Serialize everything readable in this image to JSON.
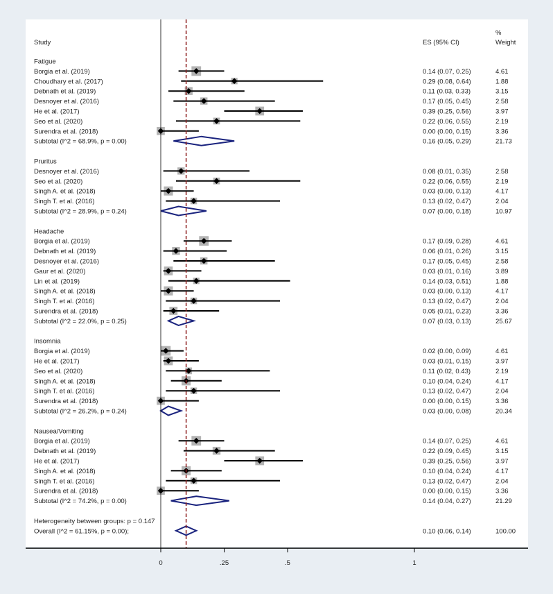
{
  "chart_data": {
    "type": "forest",
    "header": {
      "study": "Study",
      "es": "ES (95% CI)",
      "weight_top": "%",
      "weight": "Weight"
    },
    "x_axis": {
      "ticks": [
        0,
        0.25,
        0.5,
        1
      ],
      "tick_labels": [
        "0",
        ".25",
        ".5",
        "1"
      ],
      "range": [
        0,
        1
      ]
    },
    "overall_line": 0.1,
    "groups": [
      {
        "name": "Fatigue",
        "studies": [
          {
            "study": "Borgia et al. (2019)",
            "es": 0.14,
            "lo": 0.07,
            "hi": 0.25,
            "es_text": "0.14 (0.07, 0.25)",
            "weight": "4.61"
          },
          {
            "study": "Choudhary et al. (2017)",
            "es": 0.29,
            "lo": 0.08,
            "hi": 0.64,
            "es_text": "0.29 (0.08, 0.64)",
            "weight": "1.88"
          },
          {
            "study": "Debnath et al. (2019)",
            "es": 0.11,
            "lo": 0.03,
            "hi": 0.33,
            "es_text": "0.11 (0.03, 0.33)",
            "weight": "3.15"
          },
          {
            "study": "Desnoyer et al. (2016)",
            "es": 0.17,
            "lo": 0.05,
            "hi": 0.45,
            "es_text": "0.17 (0.05, 0.45)",
            "weight": "2.58"
          },
          {
            "study": "He et al. (2017)",
            "es": 0.39,
            "lo": 0.25,
            "hi": 0.56,
            "es_text": "0.39 (0.25, 0.56)",
            "weight": "3.97"
          },
          {
            "study": "Seo et al. (2020)",
            "es": 0.22,
            "lo": 0.06,
            "hi": 0.55,
            "es_text": "0.22 (0.06, 0.55)",
            "weight": "2.19"
          },
          {
            "study": "Surendra et al. (2018)",
            "es": 0.0,
            "lo": 0.0,
            "hi": 0.15,
            "es_text": "0.00 (0.00, 0.15)",
            "weight": "3.36"
          }
        ],
        "subtotal": {
          "label": "Subtotal  (I^2 = 68.9%, p = 0.00)",
          "es": 0.16,
          "lo": 0.05,
          "hi": 0.29,
          "es_text": "0.16 (0.05, 0.29)",
          "weight": "21.73"
        }
      },
      {
        "name": "Pruritus",
        "studies": [
          {
            "study": "Desnoyer et al. (2016)",
            "es": 0.08,
            "lo": 0.01,
            "hi": 0.35,
            "es_text": "0.08 (0.01, 0.35)",
            "weight": "2.58"
          },
          {
            "study": "Seo et al. (2020)",
            "es": 0.22,
            "lo": 0.06,
            "hi": 0.55,
            "es_text": "0.22 (0.06, 0.55)",
            "weight": "2.19"
          },
          {
            "study": "Singh A. et al. (2018)",
            "es": 0.03,
            "lo": 0.0,
            "hi": 0.13,
            "es_text": "0.03 (0.00, 0.13)",
            "weight": "4.17"
          },
          {
            "study": "Singh T. et al. (2016)",
            "es": 0.13,
            "lo": 0.02,
            "hi": 0.47,
            "es_text": "0.13 (0.02, 0.47)",
            "weight": "2.04"
          }
        ],
        "subtotal": {
          "label": "Subtotal  (I^2 = 28.9%, p = 0.24)",
          "es": 0.07,
          "lo": 0.0,
          "hi": 0.18,
          "es_text": "0.07 (0.00, 0.18)",
          "weight": "10.97"
        }
      },
      {
        "name": "Headache",
        "studies": [
          {
            "study": "Borgia et al. (2019)",
            "es": 0.17,
            "lo": 0.09,
            "hi": 0.28,
            "es_text": "0.17 (0.09, 0.28)",
            "weight": "4.61"
          },
          {
            "study": "Debnath et al. (2019)",
            "es": 0.06,
            "lo": 0.01,
            "hi": 0.26,
            "es_text": "0.06 (0.01, 0.26)",
            "weight": "3.15"
          },
          {
            "study": "Desnoyer et al. (2016)",
            "es": 0.17,
            "lo": 0.05,
            "hi": 0.45,
            "es_text": "0.17 (0.05, 0.45)",
            "weight": "2.58"
          },
          {
            "study": "Gaur et al. (2020)",
            "es": 0.03,
            "lo": 0.01,
            "hi": 0.16,
            "es_text": "0.03 (0.01, 0.16)",
            "weight": "3.89"
          },
          {
            "study": "Lin et al. (2019)",
            "es": 0.14,
            "lo": 0.03,
            "hi": 0.51,
            "es_text": "0.14 (0.03, 0.51)",
            "weight": "1.88"
          },
          {
            "study": "Singh A. et al. (2018)",
            "es": 0.03,
            "lo": 0.0,
            "hi": 0.13,
            "es_text": "0.03 (0.00, 0.13)",
            "weight": "4.17"
          },
          {
            "study": "Singh T. et al. (2016)",
            "es": 0.13,
            "lo": 0.02,
            "hi": 0.47,
            "es_text": "0.13 (0.02, 0.47)",
            "weight": "2.04"
          },
          {
            "study": "Surendra et al. (2018)",
            "es": 0.05,
            "lo": 0.01,
            "hi": 0.23,
            "es_text": "0.05 (0.01, 0.23)",
            "weight": "3.36"
          }
        ],
        "subtotal": {
          "label": "Subtotal  (I^2 = 22.0%, p = 0.25)",
          "es": 0.07,
          "lo": 0.03,
          "hi": 0.13,
          "es_text": "0.07 (0.03, 0.13)",
          "weight": "25.67"
        }
      },
      {
        "name": "Insomnia",
        "studies": [
          {
            "study": "Borgia et al. (2019)",
            "es": 0.02,
            "lo": 0.0,
            "hi": 0.09,
            "es_text": "0.02 (0.00, 0.09)",
            "weight": "4.61"
          },
          {
            "study": "He et al. (2017)",
            "es": 0.03,
            "lo": 0.01,
            "hi": 0.15,
            "es_text": "0.03 (0.01, 0.15)",
            "weight": "3.97"
          },
          {
            "study": "Seo et al. (2020)",
            "es": 0.11,
            "lo": 0.02,
            "hi": 0.43,
            "es_text": "0.11 (0.02, 0.43)",
            "weight": "2.19"
          },
          {
            "study": "Singh A. et al. (2018)",
            "es": 0.1,
            "lo": 0.04,
            "hi": 0.24,
            "es_text": "0.10 (0.04, 0.24)",
            "weight": "4.17"
          },
          {
            "study": "Singh T. et al. (2016)",
            "es": 0.13,
            "lo": 0.02,
            "hi": 0.47,
            "es_text": "0.13 (0.02, 0.47)",
            "weight": "2.04"
          },
          {
            "study": "Surendra et al. (2018)",
            "es": 0.0,
            "lo": 0.0,
            "hi": 0.15,
            "es_text": "0.00 (0.00, 0.15)",
            "weight": "3.36"
          }
        ],
        "subtotal": {
          "label": "Subtotal  (I^2 = 26.2%, p = 0.24)",
          "es": 0.03,
          "lo": 0.0,
          "hi": 0.08,
          "es_text": "0.03 (0.00, 0.08)",
          "weight": "20.34"
        }
      },
      {
        "name": "Nausea/Vomiting",
        "studies": [
          {
            "study": "Borgia et al. (2019)",
            "es": 0.14,
            "lo": 0.07,
            "hi": 0.25,
            "es_text": "0.14 (0.07, 0.25)",
            "weight": "4.61"
          },
          {
            "study": "Debnath et al. (2019)",
            "es": 0.22,
            "lo": 0.09,
            "hi": 0.45,
            "es_text": "0.22 (0.09, 0.45)",
            "weight": "3.15"
          },
          {
            "study": "He et al. (2017)",
            "es": 0.39,
            "lo": 0.25,
            "hi": 0.56,
            "es_text": "0.39 (0.25, 0.56)",
            "weight": "3.97"
          },
          {
            "study": "Singh A. et al. (2018)",
            "es": 0.1,
            "lo": 0.04,
            "hi": 0.24,
            "es_text": "0.10 (0.04, 0.24)",
            "weight": "4.17"
          },
          {
            "study": "Singh T. et al. (2016)",
            "es": 0.13,
            "lo": 0.02,
            "hi": 0.47,
            "es_text": "0.13 (0.02, 0.47)",
            "weight": "2.04"
          },
          {
            "study": "Surendra et al. (2018)",
            "es": 0.0,
            "lo": 0.0,
            "hi": 0.15,
            "es_text": "0.00 (0.00, 0.15)",
            "weight": "3.36"
          }
        ],
        "subtotal": {
          "label": "Subtotal  (I^2 = 74.2%, p = 0.00)",
          "es": 0.14,
          "lo": 0.04,
          "hi": 0.27,
          "es_text": "0.14 (0.04, 0.27)",
          "weight": "21.29"
        }
      }
    ],
    "heterogeneity": "Heterogeneity between groups: p = 0.147",
    "overall": {
      "label": "Overall  (I^2 = 61.15%, p = 0.00);",
      "es": 0.1,
      "lo": 0.06,
      "hi": 0.14,
      "es_text": "0.10 (0.06, 0.14)",
      "weight": "100.00"
    },
    "colors": {
      "diamond": "#1a237e",
      "ref_line": "#8b1a1a",
      "box": "#b3b3b3",
      "marker": "#000000"
    }
  }
}
